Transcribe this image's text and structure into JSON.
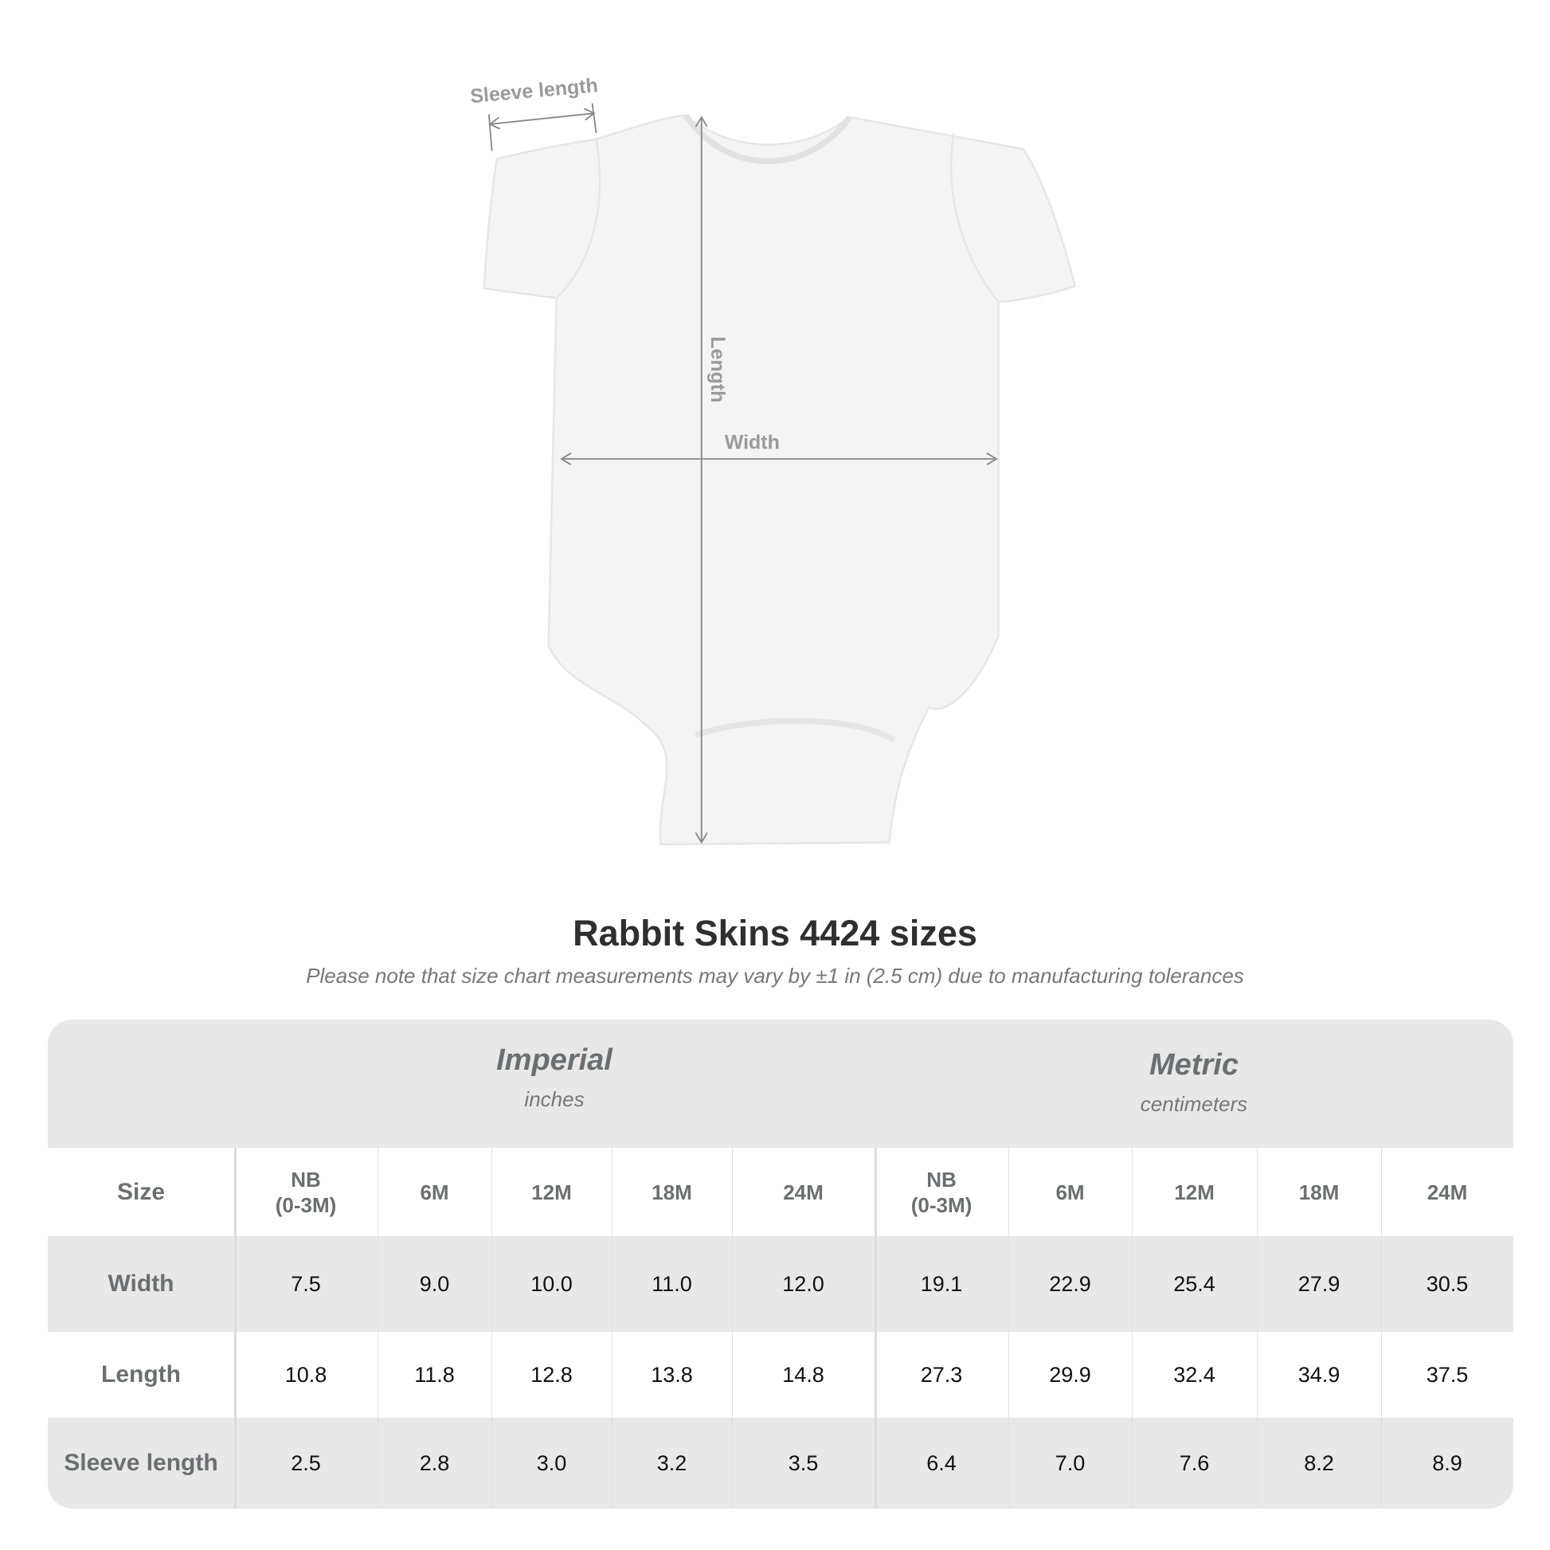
{
  "diagram": {
    "labels": {
      "sleeve": "Sleeve length",
      "length": "Length",
      "width": "Width"
    }
  },
  "title": "Rabbit Skins 4424 sizes",
  "subtitle": "Please note that size chart measurements may vary by ±1 in (2.5 cm) due to manufacturing tolerances",
  "table": {
    "groups": [
      {
        "name": "Imperial",
        "unit": "inches"
      },
      {
        "name": "Metric",
        "unit": "centimeters"
      }
    ],
    "size_label": "Size",
    "sizes": [
      "NB\n(0-3M)",
      "6M",
      "12M",
      "18M",
      "24M",
      "NB\n(0-3M)",
      "6M",
      "12M",
      "18M",
      "24M"
    ],
    "rows": [
      {
        "label": "Width",
        "values": [
          "7.5",
          "9.0",
          "10.0",
          "11.0",
          "12.0",
          "19.1",
          "22.9",
          "25.4",
          "27.9",
          "30.5"
        ]
      },
      {
        "label": "Length",
        "values": [
          "10.8",
          "11.8",
          "12.8",
          "13.8",
          "14.8",
          "27.3",
          "29.9",
          "32.4",
          "34.9",
          "37.5"
        ]
      },
      {
        "label": "Sleeve length",
        "values": [
          "2.5",
          "2.8",
          "3.0",
          "3.2",
          "3.5",
          "6.4",
          "7.0",
          "7.6",
          "8.2",
          "8.9"
        ]
      }
    ]
  },
  "colors": {
    "band": "#e8e8e8",
    "label": "#6a6f70",
    "arrow": "#8a8a8a"
  }
}
